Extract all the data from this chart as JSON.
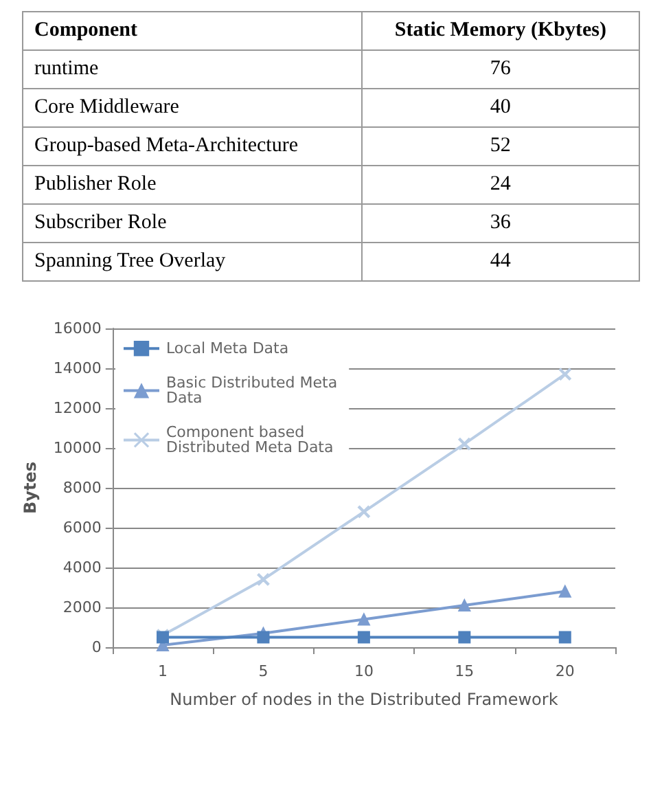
{
  "chart_data": [
    {
      "type": "other",
      "xlabel": "Component",
      "ylabel": "Static Memory (Kbytes)",
      "categories": [
        "runtime",
        "Core Middleware",
        "Group-based Meta-Architecture",
        "Publisher Role",
        "Subscriber Role",
        "Spanning Tree Overlay"
      ],
      "values": [
        76,
        40,
        52,
        24,
        36,
        44
      ],
      "data_labels": true
    },
    {
      "type": "line",
      "xlabel": "Number of nodes in the Distributed Framework",
      "ylabel": "Bytes",
      "categories": [
        "1",
        "5",
        "10",
        "15",
        "20"
      ],
      "ylim": [
        0,
        16000
      ],
      "yticks": [
        0,
        2000,
        4000,
        6000,
        8000,
        10000,
        12000,
        14000,
        16000
      ],
      "grid": "y",
      "legend": "top left",
      "series": [
        {
          "name": "Local Meta Data",
          "color": "#4f81bd",
          "marker": "square",
          "values": [
            500,
            500,
            500,
            500,
            500
          ]
        },
        {
          "name": "Basic Distributed Meta Data",
          "color": "#7b9cd0",
          "marker": "triangle",
          "values": [
            100,
            700,
            1400,
            2100,
            2800
          ]
        },
        {
          "name": "Component based Distributed Meta Data",
          "color": "#b9cde5",
          "marker": "cross",
          "values": [
            600,
            3400,
            6800,
            10200,
            13700
          ]
        }
      ]
    }
  ]
}
